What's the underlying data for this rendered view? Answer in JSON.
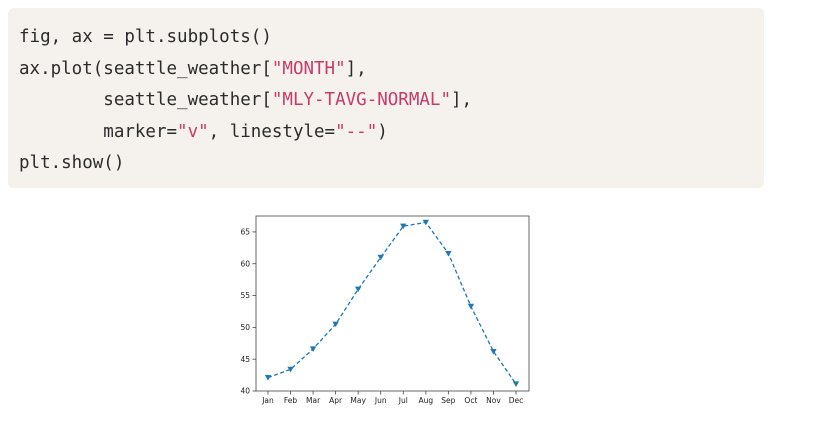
{
  "code": {
    "lines": [
      [
        {
          "t": "fig, ax = plt.subplots()"
        }
      ],
      [
        {
          "t": "ax.plot(seattle_weather["
        },
        {
          "t": "\"MONTH\"",
          "s": true
        },
        {
          "t": "],"
        }
      ],
      [
        {
          "t": "        seattle_weather["
        },
        {
          "t": "\"MLY-TAVG-NORMAL\"",
          "s": true
        },
        {
          "t": "],"
        }
      ],
      [
        {
          "t": "        marker="
        },
        {
          "t": "\"v\"",
          "s": true
        },
        {
          "t": ", linestyle="
        },
        {
          "t": "\"--\"",
          "s": true
        },
        {
          "t": ")"
        }
      ],
      [
        {
          "t": "plt.show()"
        }
      ]
    ]
  },
  "colors": {
    "code_background": "#f5f2ed",
    "string_literal": "#c73a6c",
    "line": "#1f77b4"
  },
  "chart_data": {
    "type": "line",
    "categories": [
      "Jan",
      "Feb",
      "Mar",
      "Apr",
      "May",
      "Jun",
      "Jul",
      "Aug",
      "Sep",
      "Oct",
      "Nov",
      "Dec"
    ],
    "series": [
      {
        "values": [
          42.1,
          43.4,
          46.6,
          50.5,
          56.0,
          61.0,
          65.9,
          66.5,
          61.6,
          53.3,
          46.2,
          41.1
        ],
        "marker": "triangle-down",
        "linestyle": "dashed",
        "color": "#1f77b4"
      }
    ],
    "yticks": [
      40,
      45,
      50,
      55,
      60,
      65
    ],
    "ylim": [
      40,
      67.5
    ],
    "title": "",
    "xlabel": "",
    "ylabel": "",
    "grid": false
  }
}
